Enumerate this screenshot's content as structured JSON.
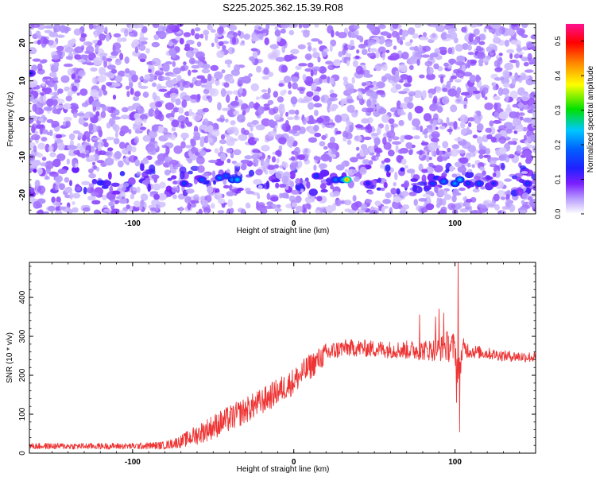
{
  "title": "S225.2025.362.15.39.R08",
  "chart_data": [
    {
      "type": "heatmap",
      "title": "S225.2025.362.15.39.R08",
      "xlabel": "Height of straight line (km)",
      "ylabel": "Frequency (Hz)",
      "xlim": [
        -164,
        150
      ],
      "ylim": [
        -25,
        25
      ],
      "x_ticks": [
        -100,
        0,
        100
      ],
      "y_ticks": [
        -20,
        -10,
        0,
        10,
        20
      ],
      "colorbar": {
        "label": "Normalized spectral amplitude",
        "range": [
          0,
          0.55
        ],
        "ticks": [
          0.0,
          0.1,
          0.2,
          0.3,
          0.4,
          0.5
        ],
        "colormap": [
          "#ffffff",
          "#7b1fff",
          "#2020ff",
          "#00c8ff",
          "#00e000",
          "#ffff00",
          "#ff8000",
          "#ff0000",
          "#ff1090"
        ]
      },
      "background_level": 0.06,
      "signal_band_hz": [
        -18,
        -14
      ],
      "hotspots": [
        {
          "x": -68,
          "y": -17,
          "v": 0.16
        },
        {
          "x": -57,
          "y": -16,
          "v": 0.18
        },
        {
          "x": -46,
          "y": -15.5,
          "v": 0.2
        },
        {
          "x": -42,
          "y": -15,
          "v": 0.18
        },
        {
          "x": -38,
          "y": -16,
          "v": 0.22
        },
        {
          "x": -35,
          "y": -16,
          "v": 0.24
        },
        {
          "x": 14,
          "y": -15,
          "v": 0.16
        },
        {
          "x": 26,
          "y": -16,
          "v": 0.2
        },
        {
          "x": 30,
          "y": -16,
          "v": 0.22
        },
        {
          "x": 33,
          "y": -16,
          "v": 0.42
        },
        {
          "x": 46,
          "y": -17,
          "v": 0.14
        },
        {
          "x": 86,
          "y": -17,
          "v": 0.16
        },
        {
          "x": 93,
          "y": -16.5,
          "v": 0.2
        },
        {
          "x": 100,
          "y": -17,
          "v": 0.22
        },
        {
          "x": 103,
          "y": -16,
          "v": 0.24
        },
        {
          "x": 108,
          "y": -17,
          "v": 0.16
        },
        {
          "x": 115,
          "y": -17,
          "v": 0.18
        },
        {
          "x": 124,
          "y": -17,
          "v": 0.14
        },
        {
          "x": 145,
          "y": -17,
          "v": 0.16
        },
        {
          "x": -163,
          "y": 12,
          "v": 0.14
        }
      ]
    },
    {
      "type": "line",
      "xlabel": "Height of straight line (km)",
      "ylabel": "SNR (10 * v/v)",
      "xlim": [
        -164,
        150
      ],
      "ylim": [
        0,
        490
      ],
      "x_ticks": [
        -100,
        0,
        100
      ],
      "y_ticks": [
        0,
        100,
        200,
        300,
        400
      ],
      "series": [
        {
          "name": "SNR",
          "color": "#ee3333",
          "x": [
            -164,
            -140,
            -120,
            -100,
            -80,
            -70,
            -60,
            -50,
            -40,
            -30,
            -20,
            -10,
            0,
            10,
            20,
            30,
            40,
            50,
            60,
            70,
            80,
            90,
            95,
            100,
            102,
            105,
            110,
            120,
            130,
            140,
            150
          ],
          "y": [
            18,
            18,
            18,
            18,
            20,
            30,
            48,
            68,
            88,
            110,
            132,
            158,
            185,
            222,
            255,
            270,
            270,
            268,
            266,
            265,
            264,
            266,
            275,
            270,
            200,
            270,
            262,
            256,
            250,
            248,
            246
          ],
          "noise_amplitude": [
            8,
            8,
            8,
            8,
            10,
            16,
            26,
            32,
            34,
            34,
            34,
            34,
            35,
            34,
            28,
            22,
            22,
            22,
            22,
            24,
            26,
            30,
            40,
            40,
            40,
            26,
            18,
            15,
            14,
            14,
            14
          ],
          "peaks": [
            {
              "x": 78,
              "y": 355
            },
            {
              "x": 88,
              "y": 350
            },
            {
              "x": 90,
              "y": 370
            },
            {
              "x": 93,
              "y": 360
            },
            {
              "x": 102,
              "y": 490
            },
            {
              "x": 102.8,
              "y": 55
            },
            {
              "x": 101,
              "y": 130
            }
          ]
        }
      ]
    }
  ]
}
